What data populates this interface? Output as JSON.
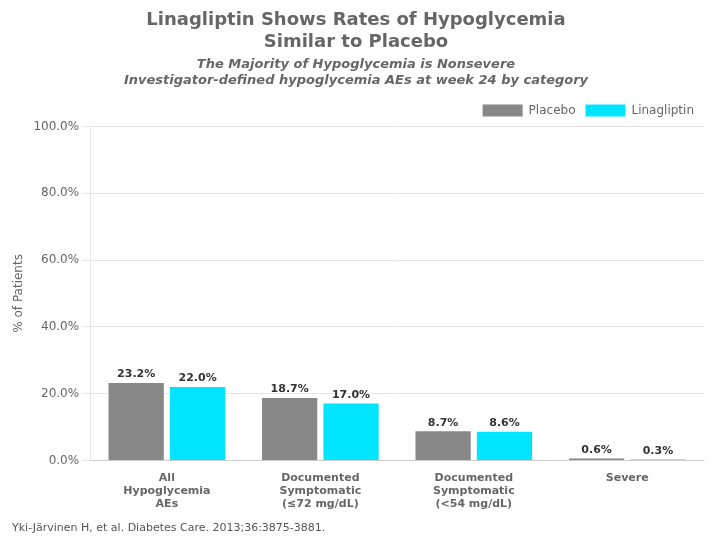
{
  "chart_data": {
    "type": "bar",
    "title": "Linagliptin Shows Rates of Hypoglycemia\nSimilar to Placebo",
    "subtitle": "The Majority of Hypoglycemia is Nonsevere",
    "annotations": [
      "Investigator-defined hypoglycemia AEs at week 24 by category",
      "Yki-Järvinen H, et al. Diabetes Care. 2013;36:3875-3881."
    ],
    "ylabel": "% of Patients",
    "categories": [
      "All\nHypoglycemia\nAEs",
      "Documented\nSymptomatic\n(≤72 mg/dL)",
      "Documented\nSymptomatic\n(<54 mg/dL)",
      "Severe"
    ],
    "series": [
      {
        "name": "Placebo",
        "color": "#888888",
        "values": [
          23.2,
          18.7,
          8.7,
          0.6
        ],
        "value_labels": [
          "23.2%",
          "18.7%",
          "8.7%",
          "0.6%"
        ]
      },
      {
        "name": "Linagliptin",
        "color": "#00E5FF",
        "values": [
          22.0,
          17.0,
          8.6,
          0.3
        ],
        "value_labels": [
          "22.0%",
          "17.0%",
          "8.6%",
          "0.3%"
        ]
      }
    ],
    "ylim": [
      0,
      100
    ],
    "yticks": [
      {
        "value": 0,
        "label": "0.0%"
      },
      {
        "value": 20,
        "label": "20.0%"
      },
      {
        "value": 40,
        "label": "40.0%"
      },
      {
        "value": 60,
        "label": "60.0%"
      },
      {
        "value": 80,
        "label": "80.0%"
      },
      {
        "value": 100,
        "label": "100.0%"
      }
    ],
    "grid": true,
    "legend": "upper right",
    "data_labels": true
  }
}
